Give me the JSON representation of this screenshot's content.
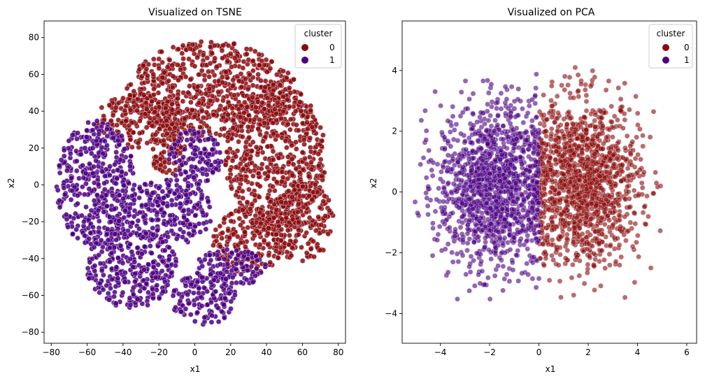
{
  "chart_data": [
    {
      "type": "scatter",
      "title": "Visualized on TSNE",
      "xlabel": "x1",
      "ylabel": "x2",
      "xlim": [
        -84,
        84
      ],
      "ylim": [
        -86,
        89
      ],
      "xticks": [
        -80,
        -60,
        -40,
        -20,
        0,
        20,
        40,
        60,
        80
      ],
      "yticks": [
        -80,
        -60,
        -40,
        -20,
        0,
        20,
        40,
        60,
        80
      ],
      "grid": false,
      "legend": {
        "title": "cluster",
        "placement": "top-right",
        "entries": [
          "0",
          "1"
        ]
      },
      "colors": {
        "0": "#8b0a0a",
        "1": "#4b0082"
      },
      "series": [
        {
          "name": "0",
          "summary_regions": [
            {
              "cx": 10,
              "cy": 52,
              "rx": 48,
              "ry": 26
            },
            {
              "cx": 45,
              "cy": 15,
              "rx": 28,
              "ry": 40
            },
            {
              "cx": 60,
              "cy": -20,
              "rx": 18,
              "ry": 22
            },
            {
              "cx": 30,
              "cy": -30,
              "rx": 20,
              "ry": 18
            },
            {
              "cx": -30,
              "cy": 35,
              "rx": 25,
              "ry": 15
            },
            {
              "cx": -15,
              "cy": 20,
              "rx": 10,
              "ry": 15
            }
          ]
        },
        {
          "name": "1",
          "summary_regions": [
            {
              "cx": -55,
              "cy": 0,
              "rx": 22,
              "ry": 35
            },
            {
              "cx": -35,
              "cy": -45,
              "rx": 25,
              "ry": 22
            },
            {
              "cx": 5,
              "cy": -62,
              "rx": 18,
              "ry": 14
            },
            {
              "cx": 0,
              "cy": 15,
              "rx": 15,
              "ry": 15
            },
            {
              "cx": 20,
              "cy": -45,
              "rx": 20,
              "ry": 10
            },
            {
              "cx": -15,
              "cy": -15,
              "rx": 25,
              "ry": 18
            }
          ]
        }
      ]
    },
    {
      "type": "scatter",
      "title": "Visualized on PCA",
      "xlabel": "x1",
      "ylabel": "x2",
      "xlim": [
        -5.55,
        6.4
      ],
      "ylim": [
        -4.98,
        5.63
      ],
      "xticks": [
        -4,
        -2,
        0,
        2,
        4,
        6
      ],
      "yticks": [
        -4,
        -2,
        0,
        2,
        4
      ],
      "grid": false,
      "legend": {
        "title": "cluster",
        "placement": "top-right",
        "entries": [
          "0",
          "1"
        ]
      },
      "colors": {
        "0": "#8b0a0a",
        "1": "#4b0082"
      },
      "series": [
        {
          "name": "0",
          "x_range": [
            0,
            5.3
          ],
          "y_range": [
            -3.5,
            4.1
          ],
          "center": [
            1.8,
            0.3
          ]
        },
        {
          "name": "1",
          "x_range": [
            -5.1,
            0.1
          ],
          "y_range": [
            -3.9,
            5.2
          ],
          "center": [
            -1.8,
            0.2
          ]
        }
      ]
    }
  ]
}
